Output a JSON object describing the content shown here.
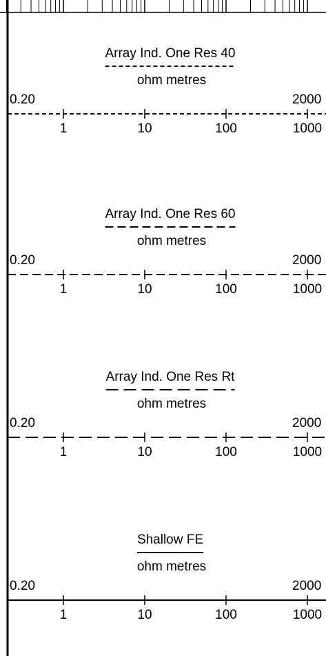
{
  "tracks": [
    {
      "title": "Array Ind. One Res 40",
      "unit": "ohm metres",
      "left_scale": "0.20",
      "right_scale": "2000",
      "ticks": [
        1,
        10,
        100,
        1000
      ]
    },
    {
      "title": "Array Ind. One Res 60",
      "unit": "ohm metres",
      "left_scale": "0.20",
      "right_scale": "2000",
      "ticks": [
        1,
        10,
        100,
        1000
      ]
    },
    {
      "title": "Array Ind. One Res Rt",
      "unit": "ohm metres",
      "left_scale": "0.20",
      "right_scale": "2000",
      "ticks": [
        1,
        10,
        100,
        1000
      ]
    },
    {
      "title": "Shallow FE",
      "unit": "ohm metres",
      "left_scale": "0.20",
      "right_scale": "2000",
      "ticks": [
        1,
        10,
        100,
        1000
      ]
    }
  ]
}
